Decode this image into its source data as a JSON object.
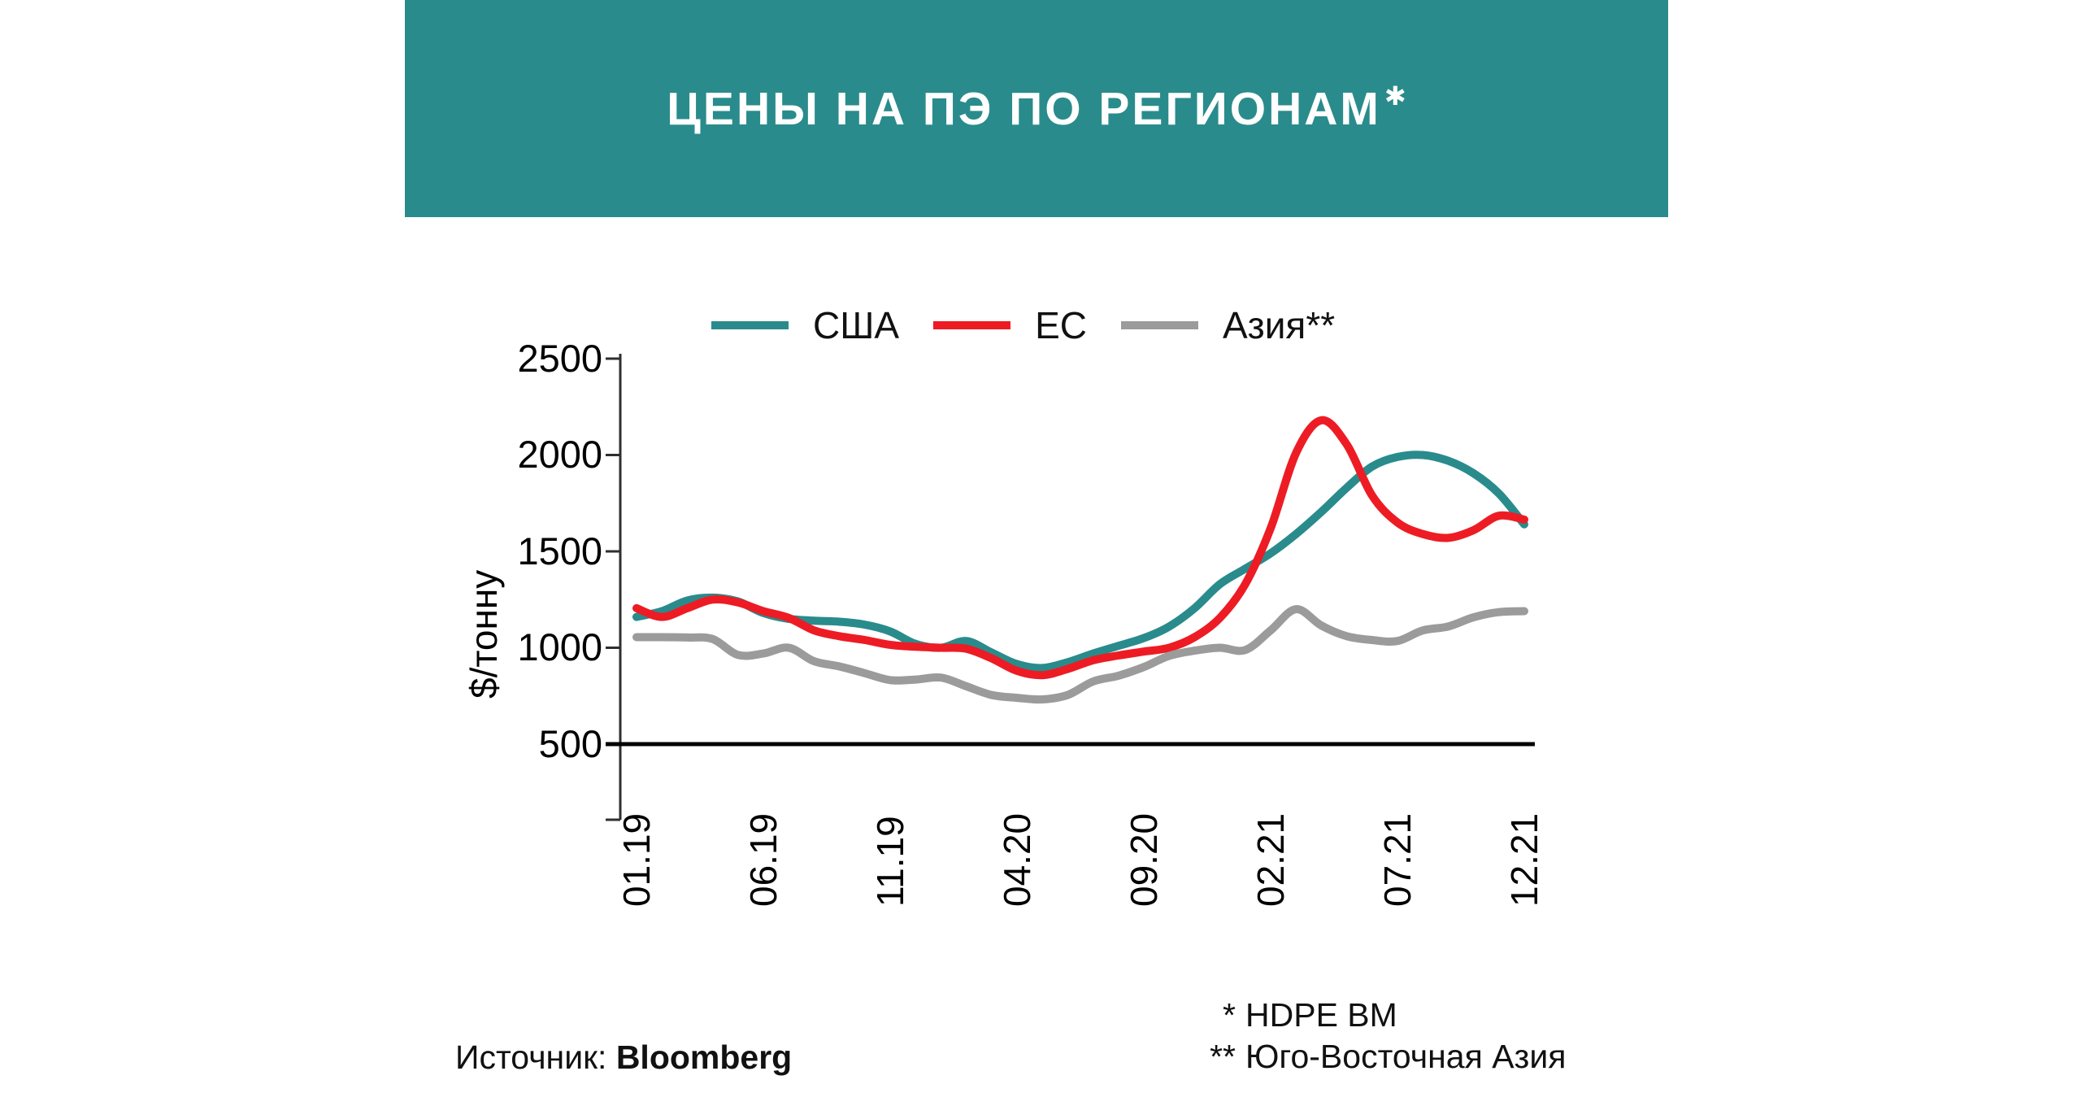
{
  "header": {
    "title": "ЦЕНЫ НА ПЭ ПО РЕГИОНАМ",
    "title_marker": "✱",
    "band_color": "#2a8b8c"
  },
  "legend": [
    {
      "label": "США",
      "color": "#2a8b8c"
    },
    {
      "label": "ЕС",
      "color": "#ed1c24"
    },
    {
      "label": "Азия**",
      "color": "#9b9b9b"
    }
  ],
  "y_axis": {
    "unit_label": "$/тонну",
    "ticks": [
      "2500",
      "2000",
      "1500",
      "1000",
      "500"
    ]
  },
  "x_axis": {
    "ticks": [
      "01.19",
      "06.19",
      "11.19",
      "04.20",
      "09.20",
      "02.21",
      "07.21",
      "12.21"
    ]
  },
  "footnotes": [
    {
      "marker": "*",
      "text": "HDPE BM"
    },
    {
      "marker": "**",
      "text": "Юго-Восточная Азия"
    }
  ],
  "source": {
    "label": "Источник:",
    "value": "Bloomberg"
  },
  "chart_data": {
    "type": "line",
    "title": "ЦЕНЫ НА ПЭ ПО РЕГИОНАМ* ($/тонну)",
    "ylabel": "$/тонну",
    "ylim": [
      500,
      2500
    ],
    "y_tick_values": [
      500,
      1000,
      1500,
      2000,
      2500
    ],
    "x_ticks_shown": [
      "01.19",
      "06.19",
      "11.19",
      "04.20",
      "09.20",
      "02.21",
      "07.21",
      "12.21"
    ],
    "legend_position": "top",
    "grid": false,
    "x": [
      "01.19",
      "02.19",
      "03.19",
      "04.19",
      "05.19",
      "06.19",
      "07.19",
      "08.19",
      "09.19",
      "10.19",
      "11.19",
      "12.19",
      "01.20",
      "02.20",
      "03.20",
      "04.20",
      "05.20",
      "06.20",
      "07.20",
      "08.20",
      "09.20",
      "10.20",
      "11.20",
      "12.20",
      "01.21",
      "02.21",
      "03.21",
      "04.21",
      "05.21",
      "06.21",
      "07.21",
      "08.21",
      "09.21",
      "10.21",
      "11.21",
      "12.21"
    ],
    "series": [
      {
        "name": "США",
        "color": "#2a8b8c",
        "values": [
          1160,
          1190,
          1245,
          1260,
          1240,
          1180,
          1150,
          1140,
          1135,
          1120,
          1085,
          1020,
          1000,
          1035,
          975,
          915,
          895,
          925,
          970,
          1010,
          1050,
          1110,
          1205,
          1330,
          1410,
          1490,
          1590,
          1705,
          1830,
          1940,
          1990,
          2000,
          1970,
          1905,
          1800,
          1640
        ]
      },
      {
        "name": "ЕС",
        "color": "#ed1c24",
        "values": [
          1205,
          1160,
          1205,
          1250,
          1235,
          1190,
          1155,
          1090,
          1060,
          1040,
          1015,
          1005,
          1000,
          995,
          945,
          880,
          858,
          890,
          935,
          960,
          980,
          1000,
          1055,
          1155,
          1330,
          1620,
          2010,
          2180,
          2055,
          1790,
          1650,
          1590,
          1570,
          1610,
          1685,
          1665
        ]
      },
      {
        "name": "Азия**",
        "color": "#9b9b9b",
        "values": [
          1055,
          1055,
          1053,
          1045,
          963,
          970,
          1000,
          930,
          903,
          868,
          832,
          835,
          845,
          800,
          755,
          740,
          732,
          755,
          825,
          855,
          900,
          958,
          985,
          1000,
          988,
          1090,
          1200,
          1115,
          1060,
          1040,
          1035,
          1090,
          1110,
          1158,
          1185,
          1190
        ]
      }
    ]
  }
}
